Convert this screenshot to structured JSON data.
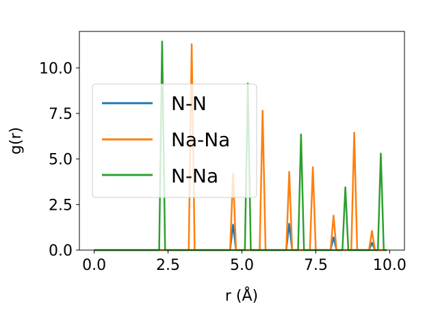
{
  "chart_data": {
    "type": "line",
    "xlabel": "r (Å)",
    "ylabel": "g(r)",
    "xlim": [
      -0.5,
      10.5
    ],
    "ylim": [
      0,
      12.0
    ],
    "x_ticks": [
      "0.0",
      "2.5",
      "5.0",
      "7.5",
      "10.0"
    ],
    "y_ticks": [
      "0.0",
      "2.5",
      "5.0",
      "7.5",
      "10.0"
    ],
    "grid": false,
    "legend_position": "upper-left",
    "series": [
      {
        "name": "N-N",
        "color": "#1f77b4",
        "peaks": [
          {
            "r": 4.7,
            "g": 1.4
          },
          {
            "r": 6.6,
            "g": 1.45
          },
          {
            "r": 8.1,
            "g": 0.7
          },
          {
            "r": 9.4,
            "g": 0.4
          }
        ]
      },
      {
        "name": "Na-Na",
        "color": "#ff7f0e",
        "peaks": [
          {
            "r": 3.3,
            "g": 11.3
          },
          {
            "r": 4.7,
            "g": 4.2
          },
          {
            "r": 5.7,
            "g": 7.65
          },
          {
            "r": 6.6,
            "g": 4.3
          },
          {
            "r": 7.4,
            "g": 4.55
          },
          {
            "r": 8.1,
            "g": 1.9
          },
          {
            "r": 8.8,
            "g": 6.45
          },
          {
            "r": 9.4,
            "g": 1.05
          }
        ]
      },
      {
        "name": "N-Na",
        "color": "#2ca02c",
        "peaks": [
          {
            "r": 2.3,
            "g": 11.45
          },
          {
            "r": 5.2,
            "g": 9.15
          },
          {
            "r": 7.0,
            "g": 6.35
          },
          {
            "r": 8.5,
            "g": 3.45
          },
          {
            "r": 9.7,
            "g": 5.3
          }
        ]
      }
    ],
    "r_range": [
      0.0,
      9.9
    ],
    "r_step": 0.1
  }
}
